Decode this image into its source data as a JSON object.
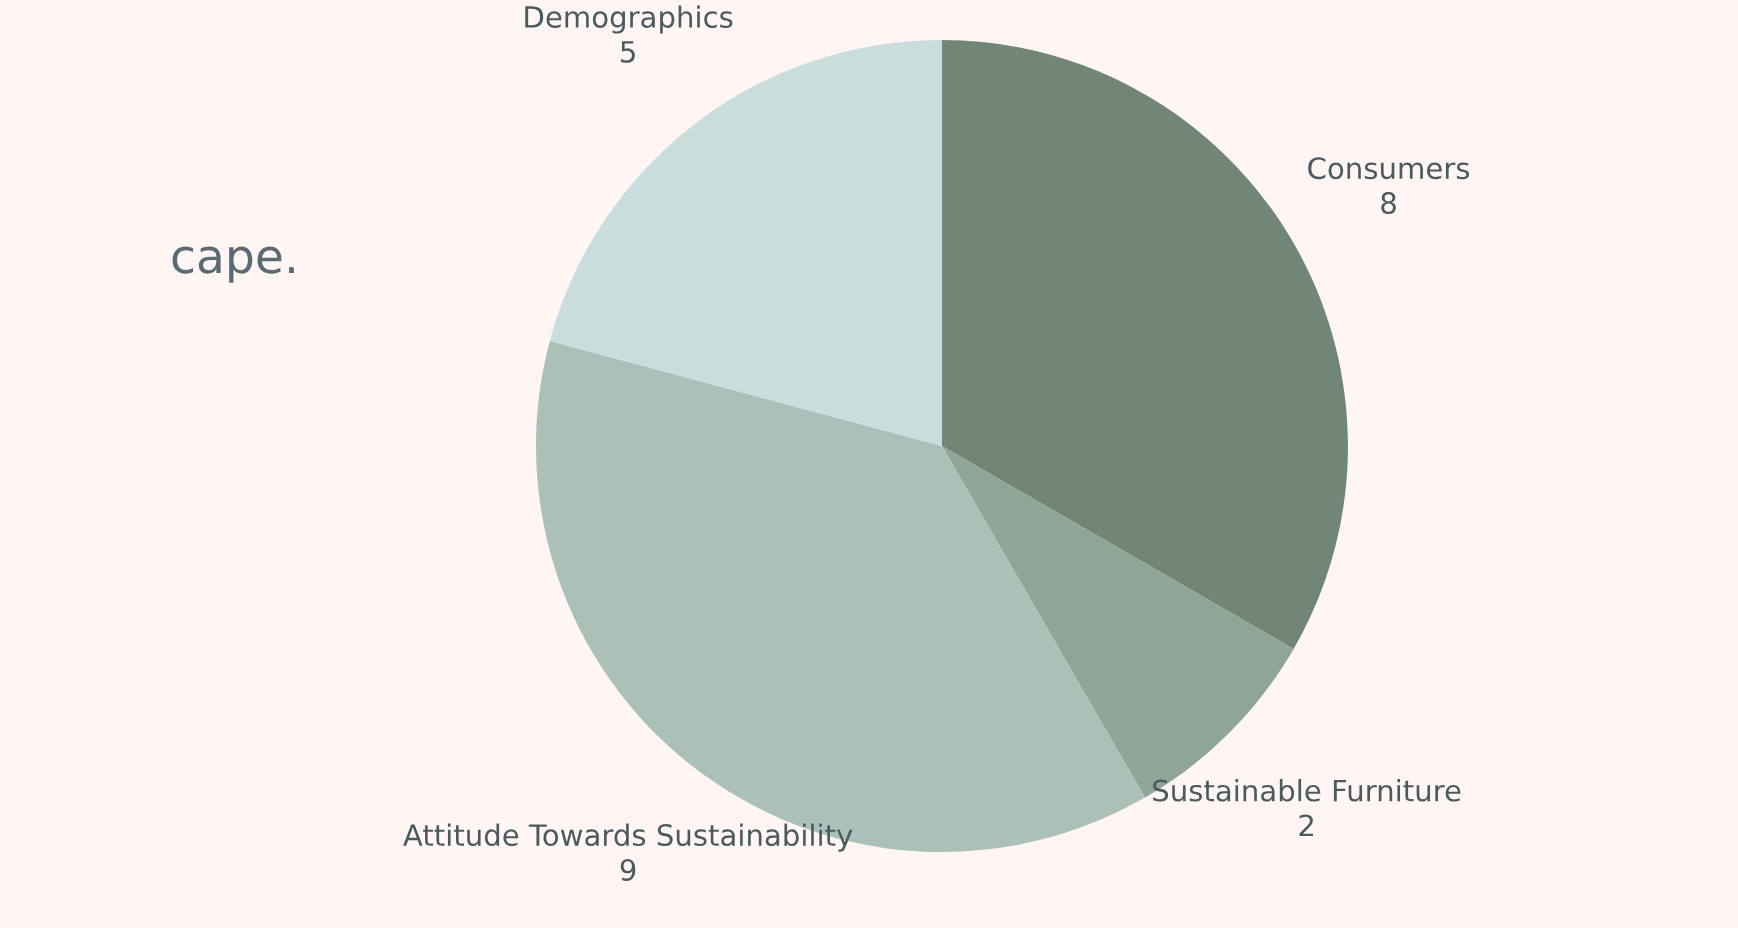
{
  "chart_data": {
    "type": "pie",
    "categories": [
      "Consumers",
      "Sustainable Furniture",
      "Attitude Towards Sustainability",
      "Demographics"
    ],
    "values": [
      8,
      2,
      9,
      5
    ],
    "colors": [
      "#718676",
      "#8fa598",
      "#abc0b8",
      "#c9dedc"
    ],
    "data_labels": true,
    "annotations": [
      "cape."
    ]
  }
}
